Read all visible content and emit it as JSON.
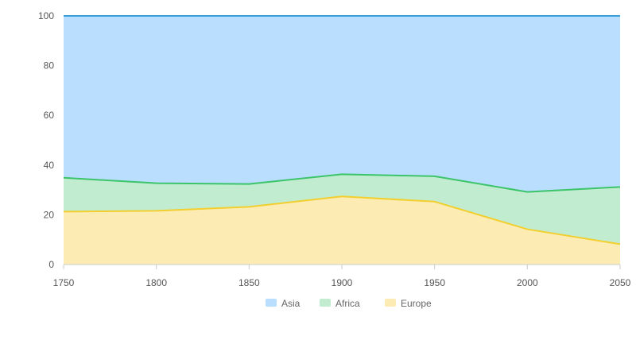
{
  "chart_data": {
    "type": "area",
    "stacked": true,
    "normalized_percent": true,
    "x": [
      1750,
      1800,
      1850,
      1900,
      1950,
      2000,
      2050
    ],
    "x_tick_labels": [
      "1750",
      "1800",
      "1850",
      "1900",
      "1950",
      "2000",
      "2050"
    ],
    "y_tick_labels": [
      "0",
      "20",
      "40",
      "60",
      "80",
      "100"
    ],
    "ylim": [
      0,
      100
    ],
    "grid": true,
    "legend_position": "bottom",
    "series": [
      {
        "name": "Asia",
        "values": [
          65.1,
          67.3,
          67.6,
          63.7,
          64.5,
          70.8,
          68.8
        ],
        "fill": "#b9defe",
        "stroke": "#3a9fd8"
      },
      {
        "name": "Africa",
        "values": [
          13.6,
          11.1,
          9.2,
          8.9,
          10.2,
          15.0,
          23.0
        ],
        "fill": "#c2ecd0",
        "stroke": "#3cc46a"
      },
      {
        "name": "Europe",
        "values": [
          21.3,
          21.6,
          23.2,
          27.4,
          25.3,
          14.2,
          8.2
        ],
        "fill": "#fcecb4",
        "stroke": "#f2cf2e"
      }
    ]
  }
}
